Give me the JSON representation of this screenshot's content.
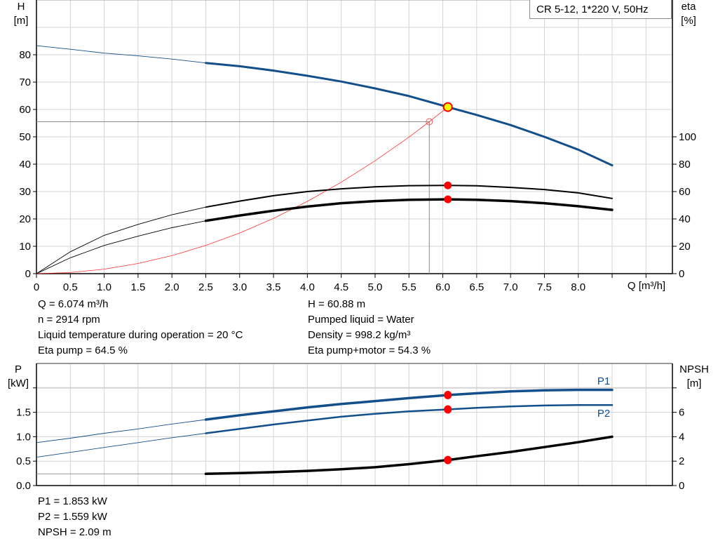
{
  "title_box": "CR 5-12, 1*220 V, 50Hz",
  "colors": {
    "head": "#134f8a",
    "eta": "#000000",
    "system": "#ff3333",
    "duty_point": "#ff0000",
    "duty_fill": "#ffff00",
    "grid": "#d3d3d3"
  },
  "chart_data": [
    {
      "type": "line",
      "title": "",
      "xlabel": "Q [m³/h]",
      "ylabel_left": "H\n[m]",
      "ylabel_left_lines": [
        "H",
        "[m]"
      ],
      "ylabel_right_lines": [
        "eta",
        "[%]"
      ],
      "xlim": [
        0,
        9.39
      ],
      "ylim_left": [
        0,
        100
      ],
      "ylim_right": [
        0,
        200
      ],
      "x_ticks": [
        "0",
        "0.5",
        "1.0",
        "1.5",
        "2.0",
        "2.5",
        "3.0",
        "3.5",
        "4.0",
        "4.5",
        "5.0",
        "5.5",
        "6.0",
        "6.5",
        "7.0",
        "7.5",
        "8.0"
      ],
      "y_left_ticks": [
        "0",
        "10",
        "20",
        "30",
        "40",
        "50",
        "60",
        "70",
        "80"
      ],
      "y_right_ticks": [
        "0",
        "20",
        "40",
        "60",
        "80",
        "100"
      ],
      "grid": true,
      "recommended_range_start": 2.5,
      "series": [
        {
          "key": "H",
          "axis": "left",
          "color": "#134f8a",
          "width": 3,
          "x": [
            0,
            0.5,
            1.0,
            1.5,
            2.0,
            2.5,
            3.0,
            3.5,
            4.0,
            4.5,
            5.0,
            5.5,
            6.0,
            6.074,
            6.5,
            7.0,
            7.5,
            8.0,
            8.5
          ],
          "y": [
            83.3,
            82.0,
            80.6,
            79.6,
            78.4,
            77.0,
            75.8,
            74.2,
            72.3,
            70.2,
            67.7,
            64.9,
            61.4,
            60.88,
            58.0,
            54.3,
            50.0,
            45.3,
            39.6
          ]
        },
        {
          "key": "eta_pump",
          "axis": "right",
          "color": "#000000",
          "width": 2,
          "x": [
            0,
            0.5,
            1.0,
            1.5,
            2.0,
            2.5,
            3.0,
            3.5,
            4.0,
            4.5,
            5.0,
            5.5,
            6.074,
            6.5,
            7.0,
            7.5,
            8.0,
            8.5
          ],
          "y": [
            0,
            16,
            28,
            36,
            43,
            48.6,
            53,
            57,
            60,
            62,
            63.5,
            64.3,
            64.5,
            64.2,
            63,
            61.5,
            59,
            55
          ]
        },
        {
          "key": "eta_pump_motor",
          "axis": "right",
          "color": "#000000",
          "width": 3.5,
          "x": [
            0,
            0.5,
            1.0,
            1.5,
            2.0,
            2.5,
            3.0,
            3.5,
            4.0,
            4.5,
            5.0,
            5.5,
            6.074,
            6.5,
            7.0,
            7.5,
            8.0,
            8.5
          ],
          "y": [
            0,
            11.6,
            20.6,
            27.4,
            33.6,
            38.6,
            42.5,
            46,
            49,
            51.5,
            53,
            54,
            54.3,
            54,
            53,
            51.5,
            49.3,
            46.6
          ]
        }
      ],
      "system_curve": {
        "x": [
          0,
          0.5,
          1.0,
          1.5,
          2.0,
          2.5,
          3.0,
          3.5,
          4.0,
          4.5,
          5.0,
          5.5,
          5.8,
          6.074
        ],
        "y": [
          0,
          0.41,
          1.65,
          3.71,
          6.6,
          10.31,
          14.85,
          20.21,
          26.4,
          33.41,
          41.25,
          49.91,
          55.5,
          60.88
        ]
      },
      "required_point": {
        "Q": 5.8,
        "H": 55.5
      },
      "duty_point": {
        "Q": 6.074,
        "H": 60.88,
        "eta_pump": 64.5,
        "eta_pump_motor": 54.3
      }
    },
    {
      "type": "line",
      "title": "",
      "ylabel_left_lines": [
        "P",
        "[kW]"
      ],
      "ylabel_right_lines": [
        "NPSH",
        "[m]"
      ],
      "xlim": [
        0,
        9.39
      ],
      "ylim_left": [
        0,
        2.5
      ],
      "ylim_right": [
        0,
        10
      ],
      "y_left_ticks": [
        "0.0",
        "0.5",
        "1.0",
        "1.5"
      ],
      "y_right_ticks": [
        "0",
        "2",
        "4",
        "6"
      ],
      "grid": true,
      "recommended_range_start": 2.5,
      "series": [
        {
          "key": "P1",
          "name": "P1",
          "axis": "left",
          "color": "#134f8a",
          "width": 3.5,
          "x": [
            0,
            0.5,
            1.0,
            1.5,
            2.0,
            2.5,
            3.0,
            3.5,
            4.0,
            4.5,
            5.0,
            5.5,
            6.074,
            6.5,
            7.0,
            7.5,
            8.0,
            8.5
          ],
          "y": [
            0.88,
            0.97,
            1.07,
            1.16,
            1.26,
            1.35,
            1.44,
            1.52,
            1.6,
            1.67,
            1.73,
            1.79,
            1.853,
            1.89,
            1.93,
            1.95,
            1.96,
            1.96
          ]
        },
        {
          "key": "P2",
          "name": "P2",
          "axis": "left",
          "color": "#134f8a",
          "width": 2.5,
          "x": [
            0,
            0.5,
            1.0,
            1.5,
            2.0,
            2.5,
            3.0,
            3.5,
            4.0,
            4.5,
            5.0,
            5.5,
            6.074,
            6.5,
            7.0,
            7.5,
            8.0,
            8.5
          ],
          "y": [
            0.58,
            0.68,
            0.78,
            0.88,
            0.98,
            1.07,
            1.16,
            1.25,
            1.33,
            1.41,
            1.47,
            1.52,
            1.559,
            1.59,
            1.62,
            1.64,
            1.65,
            1.65
          ]
        },
        {
          "key": "NPSH",
          "axis": "right",
          "color": "#000000",
          "width": 3.5,
          "x": [
            0,
            2.5,
            3.0,
            3.5,
            4.0,
            4.5,
            5.0,
            5.5,
            6.074,
            6.5,
            7.0,
            7.5,
            8.0,
            8.5
          ],
          "y": [
            0.96,
            0.96,
            1.02,
            1.1,
            1.2,
            1.34,
            1.5,
            1.75,
            2.09,
            2.4,
            2.75,
            3.15,
            3.55,
            4.0
          ]
        }
      ],
      "duty_point": {
        "Q": 6.074,
        "P1": 1.853,
        "P2": 1.559,
        "NPSH": 2.09
      }
    }
  ],
  "info": {
    "left": [
      "Q = 6.074 m³/h",
      "n = 2914 rpm",
      "Liquid temperature during operation = 20 °C",
      "Eta pump = 64.5 %"
    ],
    "right": [
      "H = 60.88 m",
      "Pumped liquid = Water",
      "Density = 998.2 kg/m³",
      "Eta pump+motor = 54.3 %"
    ],
    "bottom": [
      "P1 = 1.853 kW",
      "P2 = 1.559 kW",
      "NPSH = 2.09 m"
    ]
  }
}
